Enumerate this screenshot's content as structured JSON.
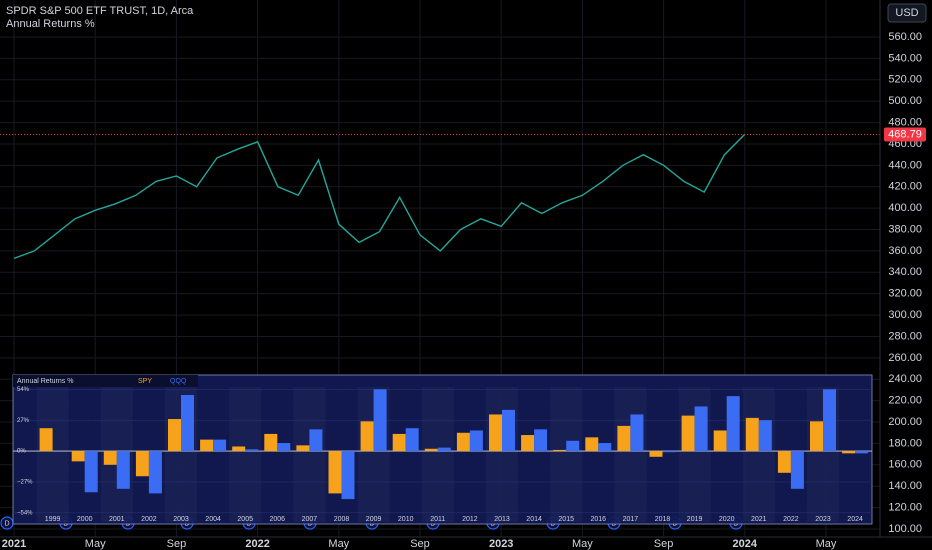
{
  "chart_data": [
    {
      "type": "line",
      "title": "SPDR S&P 500 ETF TRUST, 1D, Arca",
      "indicator": "Annual Returns %",
      "currency": "USD",
      "color": "#26a69a",
      "last_price": 468.79,
      "last_price_color": "#f23645",
      "categories": [
        "2021",
        null,
        null,
        null,
        "May",
        null,
        null,
        null,
        "Sep",
        null,
        null,
        null,
        "2022",
        null,
        null,
        null,
        "May",
        null,
        null,
        null,
        "Sep",
        null,
        null,
        null,
        "2023",
        null,
        null,
        null,
        "May",
        null,
        null,
        null,
        "Sep",
        null,
        null,
        null,
        "2024",
        null,
        null,
        null,
        "May",
        null
      ],
      "values": [
        353,
        360,
        375,
        390,
        398,
        404,
        412,
        425,
        430,
        420,
        447,
        455,
        462,
        420,
        412,
        445,
        385,
        368,
        378,
        410,
        375,
        360,
        380,
        390,
        383,
        405,
        395,
        405,
        412,
        425,
        440,
        450,
        440,
        425,
        415,
        450,
        469,
        null,
        null,
        null,
        null,
        null
      ],
      "ylim": [
        92.5,
        594.6
      ],
      "yticks": [
        {
          "value": 100,
          "label": "100.00"
        },
        {
          "value": 120,
          "label": "120.00"
        },
        {
          "value": 140,
          "label": "140.00"
        },
        {
          "value": 160,
          "label": "160.00"
        },
        {
          "value": 180,
          "label": "180.00"
        },
        {
          "value": 200,
          "label": "200.00"
        },
        {
          "value": 220,
          "label": "220.00"
        },
        {
          "value": 240,
          "label": "240.00"
        },
        {
          "value": 260,
          "label": "260.00"
        },
        {
          "value": 280,
          "label": "280.00"
        },
        {
          "value": 300,
          "label": "300.00"
        },
        {
          "value": 320,
          "label": "320.00"
        },
        {
          "value": 340,
          "label": "340.00"
        },
        {
          "value": 360,
          "label": "360.00"
        },
        {
          "value": 380,
          "label": "380.00"
        },
        {
          "value": 400,
          "label": "400.00"
        },
        {
          "value": 420,
          "label": "420.00"
        },
        {
          "value": 440,
          "label": "440.00"
        },
        {
          "value": 460,
          "label": "460.00"
        },
        {
          "value": 480,
          "label": "480.00"
        },
        {
          "value": 500,
          "label": "500.00"
        },
        {
          "value": 520,
          "label": "520.00"
        },
        {
          "value": 540,
          "label": "540.00"
        },
        {
          "value": 560,
          "label": "560.00"
        }
      ],
      "grid": true,
      "dividend_marker": "D"
    },
    {
      "type": "bar",
      "title": "Annual Returns %",
      "categories": [
        "1999",
        "2000",
        "2001",
        "2002",
        "2003",
        "2004",
        "2005",
        "2006",
        "2007",
        "2008",
        "2009",
        "2010",
        "2011",
        "2012",
        "2013",
        "2014",
        "2015",
        "2016",
        "2017",
        "2018",
        "2019",
        "2020",
        "2021",
        "2022",
        "2023",
        "2024"
      ],
      "series": [
        {
          "name": "SPY",
          "color": "#f7a21b",
          "values": [
            20,
            -9,
            -12,
            -22,
            28,
            10,
            4,
            15,
            5,
            -37,
            26,
            15,
            2,
            16,
            32,
            14,
            1,
            12,
            22,
            -5,
            31,
            18,
            29,
            -19,
            26,
            -2
          ]
        },
        {
          "name": "QQQ",
          "color": "#3a6cf4",
          "values": [
            null,
            -36,
            -33,
            -37,
            49,
            10,
            1.5,
            7,
            19,
            -42,
            54,
            20,
            3,
            18,
            36,
            19,
            9,
            7,
            32,
            -1,
            39,
            48,
            27,
            -33,
            54,
            -2
          ]
        }
      ],
      "ylim": [
        -62,
        56
      ],
      "yticks": [
        {
          "value": 54,
          "label": "54%"
        },
        {
          "value": 27,
          "label": "27%"
        },
        {
          "value": 0,
          "label": "0%"
        },
        {
          "value": -27,
          "label": "−27%"
        },
        {
          "value": -54,
          "label": "−54%"
        }
      ]
    }
  ]
}
